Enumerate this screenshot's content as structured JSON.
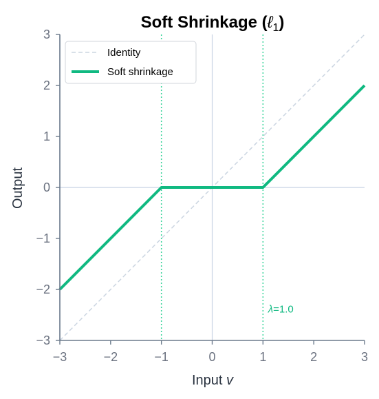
{
  "chart_data": {
    "type": "line",
    "title_main": "Soft Shrinkage (",
    "title_sym": "ℓ",
    "title_sub": "1",
    "title_close": ")",
    "xlabel_main": "Input ",
    "xlabel_var": "v",
    "ylabel": "Output",
    "xlim": [
      -3,
      3
    ],
    "ylim": [
      -3,
      3
    ],
    "x_ticks": [
      -3,
      -2,
      -1,
      0,
      1,
      2,
      3
    ],
    "y_ticks": [
      -3,
      -2,
      -1,
      0,
      1,
      2,
      3
    ],
    "x_tick_labels": [
      "−3",
      "−2",
      "−1",
      "0",
      "1",
      "2",
      "3"
    ],
    "y_tick_labels": [
      "−3",
      "−2",
      "−1",
      "0",
      "1",
      "2",
      "3"
    ],
    "grid": false,
    "legend_position": "top-left",
    "series": [
      {
        "name": "Identity",
        "style": "dashed",
        "color": "#cbd5e1",
        "x": [
          -3,
          3
        ],
        "y": [
          -3,
          3
        ]
      },
      {
        "name": "Soft shrinkage",
        "style": "solid",
        "color": "#10b981",
        "x": [
          -3,
          -1,
          1,
          3
        ],
        "y": [
          -2,
          0,
          0,
          2
        ]
      }
    ],
    "threshold_lines": [
      -1,
      1
    ],
    "threshold_color": "#34d399",
    "zero_line_color": "#c7d2e3",
    "annotation": {
      "symbol": "λ",
      "text": "=1.0",
      "x": 1.1,
      "y": -2.45,
      "color": "#10b981"
    }
  }
}
